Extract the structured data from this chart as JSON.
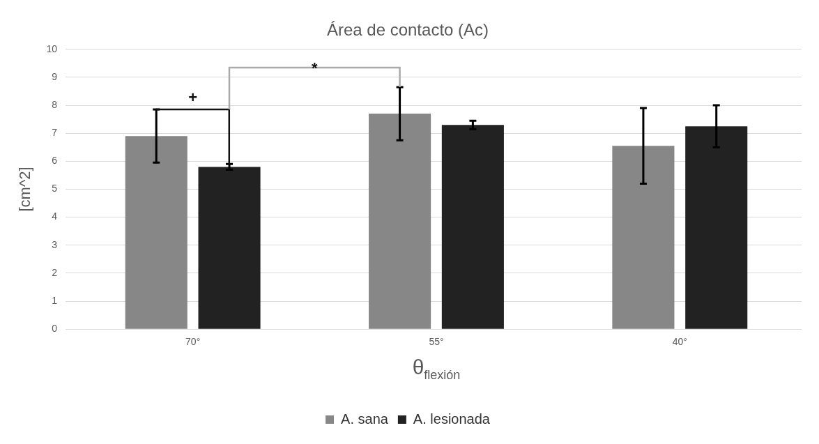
{
  "chart_data": {
    "type": "bar",
    "title": "Área de contacto (Ac)",
    "xlabel": "θ$_{flexión}$",
    "ylabel": "[cm^2]",
    "categories": [
      "70°",
      "55°",
      "40°"
    ],
    "series": [
      {
        "name": "A. sana",
        "color": "#878787",
        "values": [
          6.9,
          7.7,
          6.55
        ],
        "errors": [
          0.95,
          0.95,
          1.35
        ]
      },
      {
        "name": "A. lesionada",
        "color": "#222222",
        "values": [
          5.8,
          7.3,
          7.25
        ],
        "errors": [
          0.1,
          0.15,
          0.75
        ]
      }
    ],
    "ylim": [
      0,
      10
    ],
    "yticks": [
      0,
      1,
      2,
      3,
      4,
      5,
      6,
      7,
      8,
      9,
      10
    ],
    "grid": "y",
    "legend": "bottom",
    "annotations": [
      "+",
      "*"
    ]
  }
}
